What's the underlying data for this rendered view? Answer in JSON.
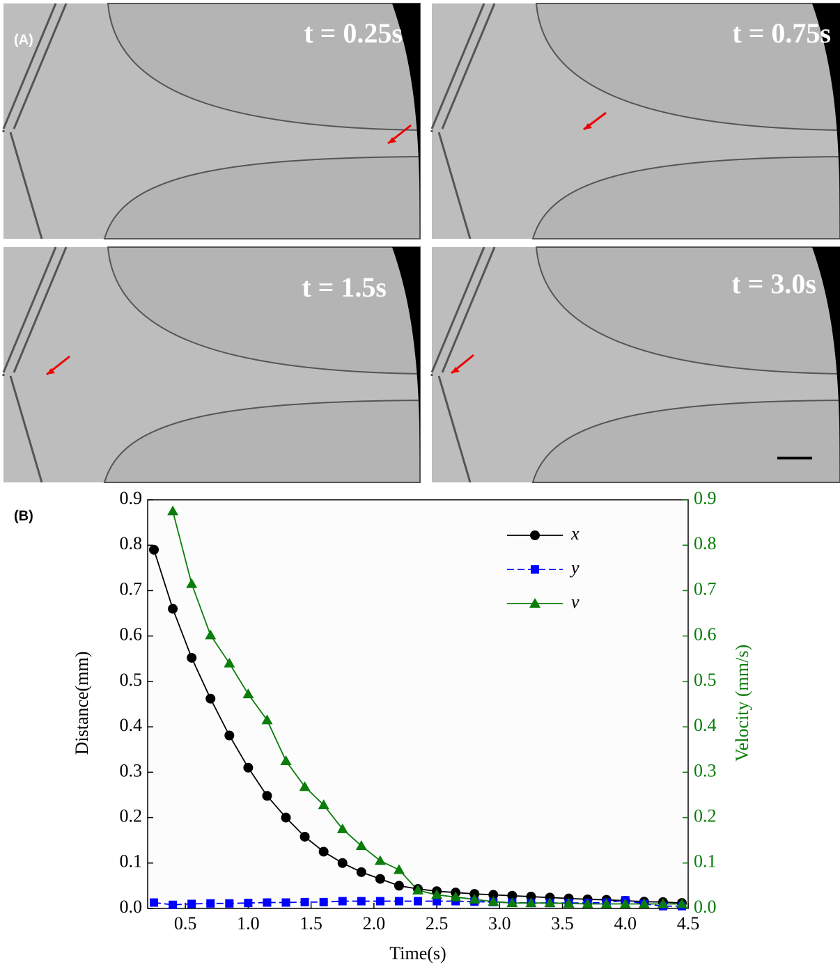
{
  "figure": {
    "panel_a": {
      "label": "(A)",
      "frames": [
        "t = 0.25s",
        "t = 0.75s",
        "t = 1.5s",
        "t = 3.0s"
      ]
    },
    "panel_b": {
      "label": "(B)"
    }
  },
  "chart_data": {
    "type": "line",
    "x_label": "Time(s)",
    "y_label": "Distance(mm)",
    "y2_label": "Velocity (mm/s)",
    "x": [
      0.25,
      0.4,
      0.55,
      0.7,
      0.85,
      1.0,
      1.15,
      1.3,
      1.45,
      1.6,
      1.75,
      1.9,
      2.05,
      2.2,
      2.35,
      2.5,
      2.65,
      2.8,
      2.95,
      3.1,
      3.25,
      3.4,
      3.55,
      3.7,
      3.85,
      4.0,
      4.15,
      4.3,
      4.45
    ],
    "series": [
      {
        "name": "x",
        "color": "#000000",
        "marker": "circle",
        "values": [
          0.79,
          0.66,
          0.552,
          0.462,
          0.381,
          0.31,
          0.248,
          0.2,
          0.158,
          0.125,
          0.1,
          0.08,
          0.065,
          0.05,
          0.043,
          0.038,
          0.035,
          0.032,
          0.03,
          0.028,
          0.026,
          0.024,
          0.022,
          0.02,
          0.019,
          0.017,
          0.015,
          0.014,
          0.012
        ]
      },
      {
        "name": "y",
        "color": "#0000ff",
        "marker": "square",
        "dashed": true,
        "values": [
          0.013,
          0.008,
          0.01,
          0.011,
          0.011,
          0.012,
          0.013,
          0.013,
          0.014,
          0.014,
          0.016,
          0.016,
          0.016,
          0.016,
          0.016,
          0.016,
          0.016,
          0.015,
          0.014,
          0.013,
          0.012,
          0.012,
          0.012,
          0.012,
          0.013,
          0.018,
          0.01,
          0.005,
          0.005
        ]
      },
      {
        "name": "v",
        "color": "#0a7d0a",
        "marker": "triangle",
        "axis": "y2",
        "values": [
          null,
          0.875,
          0.715,
          0.602,
          0.54,
          0.472,
          0.415,
          0.325,
          0.268,
          0.228,
          0.175,
          0.138,
          0.105,
          0.085,
          0.04,
          0.03,
          0.025,
          0.02,
          0.015,
          0.012,
          0.012,
          0.012,
          0.011,
          0.01,
          0.01,
          0.01,
          0.01,
          0.01,
          0.01
        ]
      }
    ],
    "xlim": [
      0.2,
      4.5
    ],
    "xticks": [
      0.5,
      {
        "value": 1,
        "label": "1.0"
      },
      1.5,
      {
        "value": 2,
        "label": "2.0"
      },
      2.5,
      {
        "value": 3,
        "label": "3.0"
      },
      3.5,
      {
        "value": 4,
        "label": "4.0"
      },
      4.5
    ],
    "ylim": [
      0,
      0.9
    ],
    "yticks": [
      {
        "value": 0,
        "label": "0.0"
      },
      0.1,
      0.2,
      0.3,
      0.4,
      0.5,
      0.6,
      0.7,
      0.8,
      0.9
    ],
    "y2lim": [
      0,
      0.9
    ],
    "y2ticks": [
      {
        "value": 0,
        "label": "0.0"
      },
      0.1,
      0.2,
      0.3,
      0.4,
      0.5,
      0.6,
      0.7,
      0.8,
      0.9
    ],
    "y2_color": "#0a7d0a",
    "legend": "upper right"
  }
}
